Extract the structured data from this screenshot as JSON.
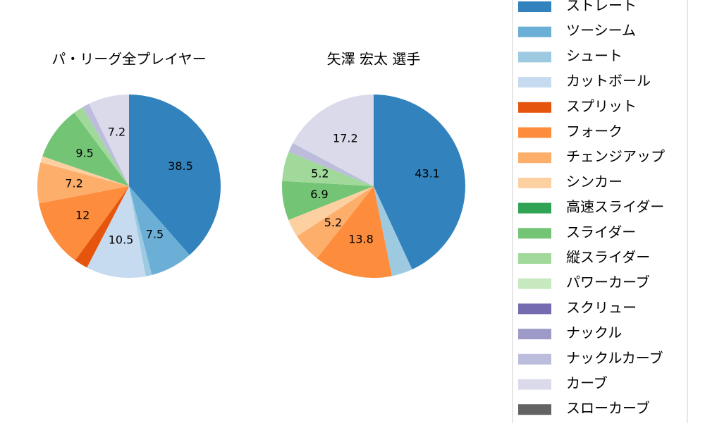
{
  "chart_data": [
    {
      "type": "pie",
      "title": "パ・リーグ全プレイヤー",
      "categories": [
        "ストレート",
        "ツーシーム",
        "シュート",
        "カットボール",
        "スプリット",
        "フォーク",
        "チェンジアップ",
        "シンカー",
        "高速スライダー",
        "スライダー",
        "縦スライダー",
        "パワーカーブ",
        "スクリュー",
        "ナックル",
        "ナックルカーブ",
        "カーブ",
        "スローカーブ"
      ],
      "values": [
        38.5,
        7.5,
        1.1,
        10.5,
        2.4,
        12.0,
        7.2,
        1.1,
        0,
        9.5,
        1.7,
        0,
        0,
        0,
        1.3,
        7.2,
        0
      ],
      "colors": [
        "#3182bd",
        "#6baed6",
        "#9ecae1",
        "#c6dbef",
        "#e6550d",
        "#fd8d3c",
        "#fdae6b",
        "#fdd0a2",
        "#31a354",
        "#74c476",
        "#a1d99b",
        "#c7e9c0",
        "#756bb1",
        "#9e9ac8",
        "#bcbddc",
        "#dadaeb",
        "#636363"
      ],
      "min_label": 5
    },
    {
      "type": "pie",
      "title": "矢澤 宏太  選手",
      "categories": [
        "ストレート",
        "ツーシーム",
        "シュート",
        "カットボール",
        "スプリット",
        "フォーク",
        "チェンジアップ",
        "シンカー",
        "高速スライダー",
        "スライダー",
        "縦スライダー",
        "パワーカーブ",
        "スクリュー",
        "ナックル",
        "ナックルカーブ",
        "カーブ",
        "スローカーブ"
      ],
      "values": [
        43.1,
        0,
        3.7,
        0,
        0,
        13.8,
        5.2,
        3.2,
        0,
        6.9,
        5.2,
        0,
        0,
        0,
        1.7,
        17.2,
        0
      ],
      "colors": [
        "#3182bd",
        "#6baed6",
        "#9ecae1",
        "#c6dbef",
        "#e6550d",
        "#fd8d3c",
        "#fdae6b",
        "#fdd0a2",
        "#31a354",
        "#74c476",
        "#a1d99b",
        "#c7e9c0",
        "#756bb1",
        "#9e9ac8",
        "#bcbddc",
        "#dadaeb",
        "#636363"
      ],
      "min_label": 5
    }
  ]
}
